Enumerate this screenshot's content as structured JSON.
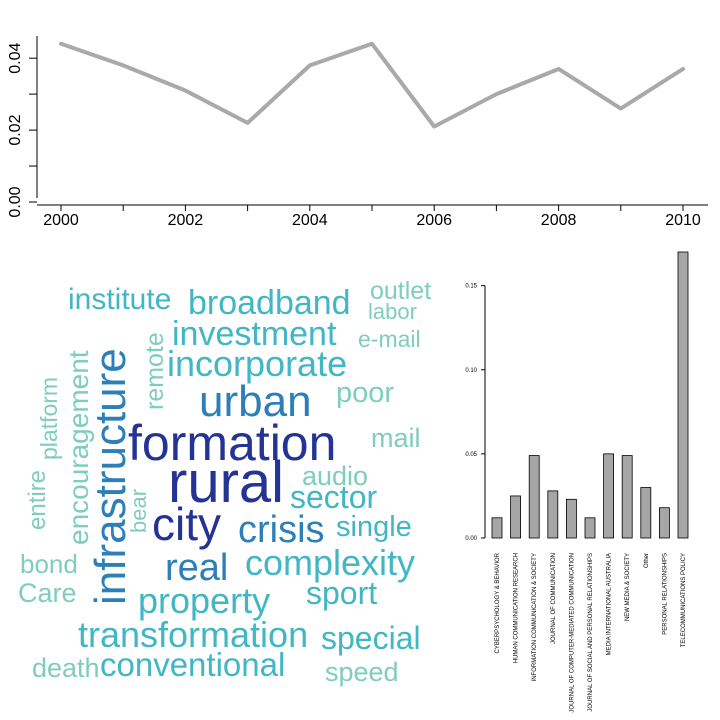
{
  "chart_data": [
    {
      "type": "line",
      "x": [
        2000,
        2001,
        2002,
        2003,
        2004,
        2005,
        2006,
        2007,
        2008,
        2009,
        2010
      ],
      "y": [
        0.044,
        0.038,
        0.031,
        0.022,
        0.038,
        0.044,
        0.021,
        0.03,
        0.037,
        0.026,
        0.037
      ],
      "xticks": [
        "2000",
        "2002",
        "2004",
        "2006",
        "2008",
        "2010"
      ],
      "yticks": [
        "0.00",
        "0.02",
        "0.04"
      ],
      "xlim": [
        2000,
        2010
      ],
      "ylim": [
        0,
        0.045
      ],
      "line_color": "#a9a9a9"
    },
    {
      "type": "wordcloud",
      "words": [
        {
          "text": "rural",
          "color": "#253494"
        },
        {
          "text": "formation",
          "color": "#253494"
        },
        {
          "text": "city",
          "color": "#253494"
        },
        {
          "text": "infrastructure",
          "color": "#2c7fb8"
        },
        {
          "text": "urban",
          "color": "#2c7fb8"
        },
        {
          "text": "crisis",
          "color": "#2c7fb8"
        },
        {
          "text": "real",
          "color": "#2c7fb8"
        },
        {
          "text": "incorporate",
          "color": "#41b6c4"
        },
        {
          "text": "investment",
          "color": "#41b6c4"
        },
        {
          "text": "broadband",
          "color": "#41b6c4"
        },
        {
          "text": "sector",
          "color": "#41b6c4"
        },
        {
          "text": "complexity",
          "color": "#41b6c4"
        },
        {
          "text": "property",
          "color": "#41b6c4"
        },
        {
          "text": "transformation",
          "color": "#41b6c4"
        },
        {
          "text": "conventional",
          "color": "#41b6c4"
        },
        {
          "text": "special",
          "color": "#41b6c4"
        },
        {
          "text": "institute",
          "color": "#41b6c4"
        },
        {
          "text": "sport",
          "color": "#41b6c4"
        },
        {
          "text": "single",
          "color": "#41b6c4"
        },
        {
          "text": "encouragement",
          "color": "#7fcdbb"
        },
        {
          "text": "remote",
          "color": "#7fcdbb"
        },
        {
          "text": "outlet",
          "color": "#7fcdbb"
        },
        {
          "text": "labor",
          "color": "#7fcdbb"
        },
        {
          "text": "e-mail",
          "color": "#7fcdbb"
        },
        {
          "text": "poor",
          "color": "#7fcdbb"
        },
        {
          "text": "mail",
          "color": "#7fcdbb"
        },
        {
          "text": "audio",
          "color": "#7fcdbb"
        },
        {
          "text": "platform",
          "color": "#7fcdbb"
        },
        {
          "text": "entire",
          "color": "#7fcdbb"
        },
        {
          "text": "bear",
          "color": "#7fcdbb"
        },
        {
          "text": "bond",
          "color": "#7fcdbb"
        },
        {
          "text": "Care",
          "color": "#7fcdbb"
        },
        {
          "text": "death",
          "color": "#7fcdbb"
        },
        {
          "text": "speed",
          "color": "#7fcdbb"
        }
      ]
    },
    {
      "type": "bar",
      "categories": [
        "CYBERPSYCHOLOGY & BEHAVIOR",
        "HUMAN COMMUNICATION RESEARCH",
        "INFORMATION COMMUNICATION & SOCIETY",
        "JOURNAL OF COMMUNICATION",
        "JOURNAL OF COMPUTER-MEDIATED COMMUNICATION",
        "JOURNAL OF SOCIAL AND PERSONAL RELATIONSHIPS",
        "MEDIA INTERNATIONAL AUSTRALIA",
        "NEW MEDIA & SOCIETY",
        "Other",
        "PERSONAL RELATIONSHIPS",
        "TELECOMMUNICATIONS POLICY"
      ],
      "values": [
        0.012,
        0.025,
        0.049,
        0.028,
        0.023,
        0.012,
        0.05,
        0.049,
        0.03,
        0.018,
        0.17
      ],
      "yticks": [
        "0.00",
        "0.05",
        "0.10",
        "0.15"
      ],
      "ylim": [
        0,
        0.17
      ],
      "bar_color": "#a6a6a6"
    }
  ]
}
